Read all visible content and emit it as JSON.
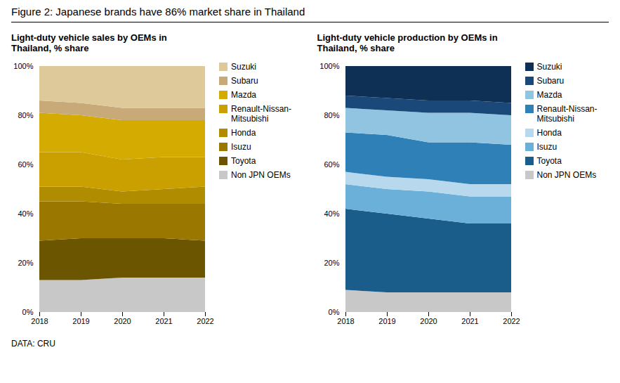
{
  "title": "Figure 2: Japanese brands have 86% market share in Thailand",
  "caption": "DATA: CRU",
  "chart_data": [
    {
      "type": "area",
      "stacked": true,
      "grid": false,
      "legend": "right",
      "title": "Light-duty vehicle sales by OEMs in\nThailand, % share",
      "x": [
        2018,
        2019,
        2020,
        2021,
        2022
      ],
      "xlim": [
        2018,
        2022
      ],
      "xticks": [
        2018,
        2019,
        2020,
        2021,
        2022
      ],
      "ylim": [
        0,
        100
      ],
      "yticks": [
        {
          "value": 0,
          "label": "0%"
        },
        {
          "value": 20,
          "label": "20%"
        },
        {
          "value": 40,
          "label": "40%"
        },
        {
          "value": 60,
          "label": "60%"
        },
        {
          "value": 80,
          "label": "80%"
        },
        {
          "value": 100,
          "label": "100%"
        }
      ],
      "series": [
        {
          "name": "Non JPN OEMs",
          "color": "#c8c8c8",
          "values": [
            13,
            13,
            14,
            14,
            14
          ]
        },
        {
          "name": "Toyota",
          "color": "#6b5500",
          "values": [
            16,
            17,
            16,
            16,
            15
          ]
        },
        {
          "name": "Isuzu",
          "color": "#9a7800",
          "values": [
            16,
            15,
            14,
            14,
            15
          ]
        },
        {
          "name": "Honda",
          "color": "#b08c00",
          "values": [
            6,
            6,
            5,
            6,
            7
          ]
        },
        {
          "name": "Renault-Nissan-\nMitsubishi",
          "color": "#c9a000",
          "values": [
            14,
            14,
            13,
            13,
            12
          ]
        },
        {
          "name": "Mazda",
          "color": "#d4ab00",
          "values": [
            16,
            15,
            16,
            15,
            15
          ]
        },
        {
          "name": "Subaru",
          "color": "#c8aa78",
          "values": [
            5,
            5,
            5,
            5,
            5
          ]
        },
        {
          "name": "Suzuki",
          "color": "#ddc99a",
          "values": [
            14,
            15,
            17,
            17,
            17
          ]
        }
      ]
    },
    {
      "type": "area",
      "stacked": true,
      "grid": false,
      "legend": "right",
      "title": "Light-duty vehicle production by OEMs in\nThailand, % share",
      "x": [
        2018,
        2019,
        2020,
        2021,
        2022
      ],
      "xlim": [
        2018,
        2022
      ],
      "xticks": [
        2018,
        2019,
        2020,
        2021,
        2022
      ],
      "ylim": [
        0,
        100
      ],
      "yticks": [
        {
          "value": 0,
          "label": "0%"
        },
        {
          "value": 20,
          "label": "20%"
        },
        {
          "value": 40,
          "label": "40%"
        },
        {
          "value": 60,
          "label": "60%"
        },
        {
          "value": 80,
          "label": "80%"
        },
        {
          "value": 100,
          "label": "100%"
        }
      ],
      "series": [
        {
          "name": "Non JPN OEMs",
          "color": "#c8c8c8",
          "values": [
            9,
            8,
            8,
            8,
            8
          ]
        },
        {
          "name": "Toyota",
          "color": "#1a5c8a",
          "values": [
            33,
            32,
            30,
            28,
            28
          ]
        },
        {
          "name": "Isuzu",
          "color": "#6ab0d8",
          "values": [
            10,
            10,
            11,
            11,
            11
          ]
        },
        {
          "name": "Honda",
          "color": "#b8d8ed",
          "values": [
            5,
            5,
            5,
            5,
            5
          ]
        },
        {
          "name": "Renault-Nissan-\nMitsubishi",
          "color": "#3080b8",
          "values": [
            16,
            17,
            15,
            17,
            16
          ]
        },
        {
          "name": "Mazda",
          "color": "#90c4e0",
          "values": [
            10,
            10,
            12,
            12,
            12
          ]
        },
        {
          "name": "Subaru",
          "color": "#1a4878",
          "values": [
            5,
            5,
            5,
            5,
            5
          ]
        },
        {
          "name": "Suzuki",
          "color": "#0f3055",
          "values": [
            12,
            13,
            14,
            14,
            15
          ]
        }
      ]
    }
  ]
}
